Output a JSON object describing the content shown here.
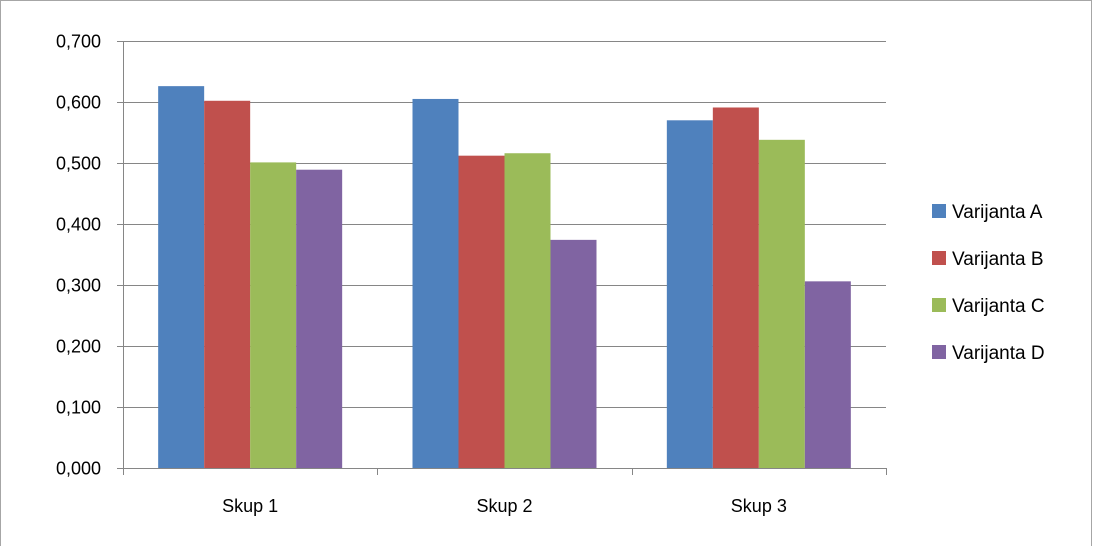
{
  "chart_data": {
    "type": "bar",
    "categories": [
      "Skup 1",
      "Skup 2",
      "Skup 3"
    ],
    "series": [
      {
        "name": "Varijanta A",
        "color": "#4f81bd",
        "values": [
          0.626,
          0.605,
          0.57
        ]
      },
      {
        "name": "Varijanta B",
        "color": "#c0504d",
        "values": [
          0.602,
          0.512,
          0.591
        ]
      },
      {
        "name": "Varijanta C",
        "color": "#9bbb59",
        "values": [
          0.501,
          0.516,
          0.538
        ]
      },
      {
        "name": "Varijanta D",
        "color": "#8064a2",
        "values": [
          0.489,
          0.374,
          0.306
        ]
      }
    ],
    "ylim": [
      0,
      0.7
    ],
    "yticks": [
      "0,000",
      "0,100",
      "0,200",
      "0,300",
      "0,400",
      "0,500",
      "0,600",
      "0,700"
    ],
    "grid": true,
    "legend_position": "right"
  }
}
